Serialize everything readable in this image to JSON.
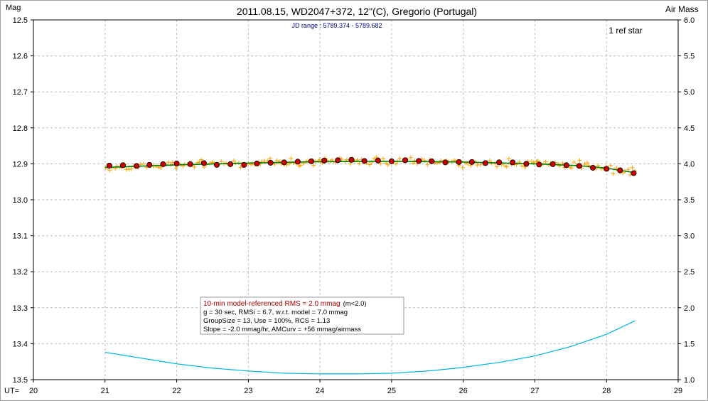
{
  "chart_data": {
    "type": "scatter",
    "title": "2011.08.15, WD2047+372, 12\"(C), Gregorio (Portugal)",
    "subtitle": "JD range : 5789.374 - 5789.682",
    "annotation": "1 ref star",
    "xlabel": "UT=",
    "ylabel": "Mag",
    "y2label": "Air Mass",
    "xlim": [
      20,
      29
    ],
    "ylim": [
      12.5,
      13.5
    ],
    "y_inverted": true,
    "y2lim": [
      1.0,
      6.0
    ],
    "x_ticks": [
      "20",
      "21",
      "22",
      "23",
      "24",
      "25",
      "26",
      "27",
      "28",
      "29"
    ],
    "y_ticks": [
      "12.5",
      "12.6",
      "12.7",
      "12.8",
      "12.9",
      "13.0",
      "13.1",
      "13.2",
      "13.3",
      "13.4",
      "13.5"
    ],
    "y2_ticks": [
      "6.0",
      "5.5",
      "5.0",
      "4.5",
      "4.0",
      "3.5",
      "3.0",
      "2.5",
      "2.0",
      "1.5",
      "1.0"
    ],
    "grid": true,
    "series": [
      {
        "kind": "group-averages",
        "color": "#cc0000",
        "x": [
          21.06,
          21.25,
          21.44,
          21.62,
          21.81,
          22.0,
          22.19,
          22.38,
          22.56,
          22.75,
          22.94,
          23.12,
          23.31,
          23.5,
          23.69,
          23.88,
          24.06,
          24.25,
          24.44,
          24.62,
          24.81,
          25.0,
          25.19,
          25.38,
          25.56,
          25.75,
          25.94,
          26.12,
          26.31,
          26.5,
          26.69,
          26.88,
          27.06,
          27.25,
          27.44,
          27.62,
          27.81,
          28.0,
          28.19,
          28.38
        ],
        "y": [
          12.905,
          12.904,
          12.906,
          12.903,
          12.901,
          12.899,
          12.901,
          12.898,
          12.903,
          12.901,
          12.903,
          12.899,
          12.897,
          12.896,
          12.894,
          12.893,
          12.891,
          12.89,
          12.889,
          12.892,
          12.891,
          12.893,
          12.89,
          12.892,
          12.893,
          12.896,
          12.895,
          12.895,
          12.898,
          12.896,
          12.896,
          12.9,
          12.902,
          12.901,
          12.904,
          12.906,
          12.911,
          12.914,
          12.918,
          12.926
        ]
      },
      {
        "kind": "model-fit",
        "color": "#008000",
        "x": [
          21.0,
          22.0,
          23.0,
          24.0,
          25.0,
          26.0,
          27.0,
          27.6,
          28.0,
          28.4
        ],
        "y": [
          12.91,
          12.903,
          12.898,
          12.894,
          12.893,
          12.895,
          12.9,
          12.905,
          12.912,
          12.925
        ]
      },
      {
        "kind": "air-mass",
        "axis": "y2",
        "color": "#00b4e0",
        "x": [
          21.0,
          21.5,
          22.0,
          22.5,
          23.0,
          23.5,
          24.0,
          24.5,
          25.0,
          25.5,
          26.0,
          26.5,
          27.0,
          27.5,
          28.0,
          28.4
        ],
        "y": [
          1.38,
          1.3,
          1.22,
          1.16,
          1.12,
          1.09,
          1.08,
          1.08,
          1.09,
          1.12,
          1.17,
          1.24,
          1.33,
          1.46,
          1.63,
          1.82
        ]
      }
    ],
    "raw_points": {
      "marker": "+",
      "color": "#ffa000",
      "x_start": 21.0,
      "x_end": 28.4,
      "count": 220,
      "scatter_mag": 0.007
    },
    "info_box": {
      "line1_red": "10-min model-referenced RMS = 2.0 mmag",
      "line1_black": "(m<2.0)",
      "line2": "g = 30 sec, RMSi = 6.7, w.r.t. model = 7.0 mmag",
      "line3": "GroupSize = 13, Use = 100%, RCS = 1.13",
      "line4": "Slope = -2.0 mmag/hr, AMCurv = +56 mmag/airmass"
    }
  }
}
